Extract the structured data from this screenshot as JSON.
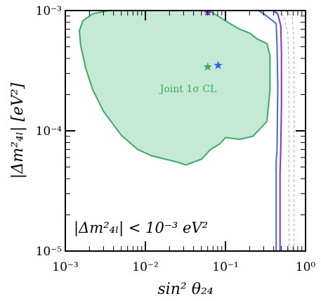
{
  "chart_data": {
    "type": "contour",
    "xlabel": "sin² θ₂₄",
    "ylabel": "|Δm²₄ₗ| [eV²]",
    "xscale": "log",
    "yscale": "log",
    "xlim": [
      0.001,
      1.0
    ],
    "ylim": [
      1e-05,
      0.001
    ],
    "x_tick_labels": [
      "10⁻³",
      "10⁻²",
      "10⁻¹",
      "10⁰"
    ],
    "y_tick_labels": [
      "10⁻⁵",
      "10⁻⁴",
      "10⁻³"
    ],
    "annotations": {
      "region_label": "Joint 1σ CL",
      "cut_label": "|Δm²₄ₗ| < 10⁻³ eV²"
    },
    "colors": {
      "region_fill": "#c4ead5",
      "region_edge": "#3aaa64",
      "blue_line": "#3b6fd0",
      "purple_line": "#8a2be2",
      "gray_dashed": "#a8a8a8",
      "best_fit_green": "#3aaa64",
      "best_fit_blue": "#3b5fe0",
      "best_fit_purple": "#8a2be2"
    },
    "region_1sigma": [
      [
        0.0035,
        0.001
      ],
      [
        0.06,
        0.001
      ],
      [
        0.075,
        0.00093
      ],
      [
        0.1,
        0.00082
      ],
      [
        0.15,
        0.0007
      ],
      [
        0.2,
        0.00065
      ],
      [
        0.25,
        0.00058
      ],
      [
        0.33,
        0.00053
      ],
      [
        0.36,
        0.00042
      ],
      [
        0.36,
        0.00022
      ],
      [
        0.33,
        0.00012
      ],
      [
        0.22,
        9e-05
      ],
      [
        0.15,
        8.5e-05
      ],
      [
        0.1,
        8.8e-05
      ],
      [
        0.085,
        7.8e-05
      ],
      [
        0.065,
        7e-05
      ],
      [
        0.05,
        5.8e-05
      ],
      [
        0.04,
        5.5e-05
      ],
      [
        0.032,
        5.2e-05
      ],
      [
        0.025,
        5.5e-05
      ],
      [
        0.018,
        5.8e-05
      ],
      [
        0.012,
        6.2e-05
      ],
      [
        0.008,
        7e-05
      ],
      [
        0.005,
        9.2e-05
      ],
      [
        0.003,
        0.000145
      ],
      [
        0.0022,
        0.00022
      ],
      [
        0.0018,
        0.00033
      ],
      [
        0.00155,
        0.00052
      ],
      [
        0.0015,
        0.00068
      ],
      [
        0.00165,
        0.00082
      ],
      [
        0.0022,
        0.00094
      ],
      [
        0.0035,
        0.001
      ]
    ],
    "blue_contour": [
      [
        0.43,
        1e-05
      ],
      [
        0.43,
        5.6e-05
      ],
      [
        0.44,
        7e-05
      ],
      [
        0.45,
        0.00023
      ],
      [
        0.44,
        0.00052
      ],
      [
        0.43,
        0.00078
      ],
      [
        0.32,
        0.00091
      ],
      [
        0.26,
        0.001
      ]
    ],
    "purple_contour": [
      [
        0.48,
        1e-05
      ],
      [
        0.48,
        4.5e-05
      ],
      [
        0.49,
        7e-05
      ],
      [
        0.5,
        0.00016
      ],
      [
        0.5,
        0.00045
      ],
      [
        0.49,
        0.00075
      ],
      [
        0.45,
        0.00093
      ],
      [
        0.4,
        0.001
      ]
    ],
    "gray_dashed_contour": [
      [
        0.62,
        1e-05
      ],
      [
        0.62,
        0.0001
      ],
      [
        0.62,
        0.00035
      ],
      [
        0.6,
        0.00065
      ],
      [
        0.53,
        0.0009
      ],
      [
        0.45,
        0.00097
      ],
      [
        0.41,
        0.00095
      ],
      [
        0.43,
        0.001
      ]
    ],
    "gray_dashed_contour_2": [
      [
        0.72,
        1e-05
      ],
      [
        0.72,
        0.0003
      ],
      [
        0.71,
        0.0006
      ],
      [
        0.68,
        0.00089
      ],
      [
        0.6,
        0.00096
      ],
      [
        0.55,
        0.001
      ]
    ],
    "best_fit_points": [
      {
        "x": 0.06,
        "y": 0.00034,
        "color": "green"
      },
      {
        "x": 0.081,
        "y": 0.00035,
        "color": "blue"
      },
      {
        "x": 0.06,
        "y": 0.00097,
        "color": "purple"
      }
    ]
  }
}
